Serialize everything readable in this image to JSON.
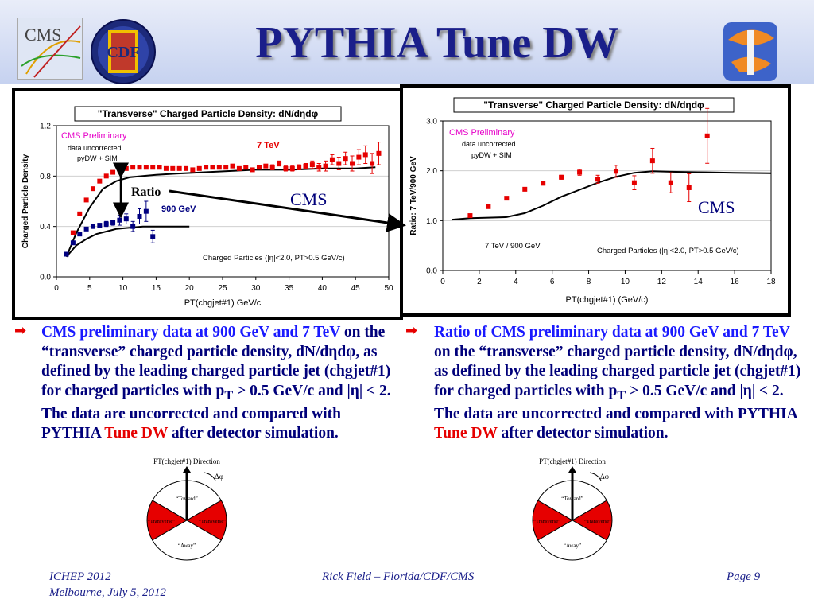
{
  "slide": {
    "title": "PYTHIA Tune DW",
    "logos": {
      "left_text": "CMS",
      "cdf_text": "CDF"
    }
  },
  "colors": {
    "title": "#1a1f8a",
    "red": "#e60000",
    "blue": "#000080",
    "magenta": "#e600c8",
    "text_blue": "#00007a",
    "bright_blue": "#1a1aff"
  },
  "annotations": {
    "ratio_label": "Ratio",
    "cms_left": "CMS",
    "cms_right": "CMS"
  },
  "chart_data": [
    {
      "type": "scatter",
      "title": "\"Transverse\" Charged Particle Density: dN/dηdφ",
      "xlabel": "PT(chgjet#1) GeV/c",
      "ylabel": "Charged Particle Density",
      "xlim": [
        0,
        50
      ],
      "ylim": [
        0,
        1.2
      ],
      "x_ticks": [
        0,
        5,
        10,
        15,
        20,
        25,
        30,
        35,
        40,
        45,
        50
      ],
      "x_tick_labels": [
        "0",
        "5",
        "10",
        "15",
        "20",
        "25",
        "30",
        "35",
        "40",
        "45",
        "50"
      ],
      "y_ticks": [
        0,
        0.4,
        0.8,
        1.2
      ],
      "y_tick_labels": [
        "0.0",
        "0.4",
        "0.8",
        "1.2"
      ],
      "annotations": {
        "prelim": "CMS Preliminary",
        "note1": "data uncorrected",
        "note2": "pyDW + SIM",
        "label_7tev": "7 TeV",
        "label_900": "900 GeV",
        "cuts": "Charged Particles (|η|<2.0, PT>0.5 GeV/c)"
      },
      "series": [
        {
          "name": "7 TeV",
          "color": "#e60000",
          "x": [
            1.5,
            2.5,
            3.5,
            4.5,
            5.5,
            6.5,
            7.5,
            8.5,
            9.5,
            10.5,
            11.5,
            12.5,
            13.5,
            14.5,
            15.5,
            16.5,
            17.5,
            18.5,
            19.5,
            20.5,
            21.5,
            22.5,
            23.5,
            24.5,
            25.5,
            26.5,
            27.5,
            28.5,
            29.5,
            30.5,
            31.5,
            32.5,
            33.5,
            34.5,
            35.5,
            36.5,
            37.5,
            38.5,
            39.5,
            40.5,
            41.5,
            42.5,
            43.5,
            44.5,
            45.5,
            46.5,
            47.5,
            48.5
          ],
          "y": [
            0.18,
            0.35,
            0.5,
            0.61,
            0.7,
            0.76,
            0.8,
            0.83,
            0.85,
            0.86,
            0.87,
            0.87,
            0.87,
            0.87,
            0.87,
            0.86,
            0.86,
            0.86,
            0.86,
            0.85,
            0.86,
            0.87,
            0.87,
            0.87,
            0.87,
            0.88,
            0.86,
            0.87,
            0.85,
            0.87,
            0.88,
            0.87,
            0.9,
            0.86,
            0.86,
            0.87,
            0.88,
            0.89,
            0.87,
            0.88,
            0.93,
            0.9,
            0.94,
            0.9,
            0.95,
            0.97,
            0.9,
            0.98
          ],
          "yerr": [
            0.01,
            0.01,
            0.01,
            0.01,
            0.01,
            0.01,
            0.01,
            0.01,
            0.01,
            0.01,
            0.01,
            0.01,
            0.01,
            0.01,
            0.01,
            0.01,
            0.01,
            0.01,
            0.01,
            0.01,
            0.01,
            0.01,
            0.01,
            0.01,
            0.01,
            0.01,
            0.01,
            0.01,
            0.01,
            0.01,
            0.01,
            0.02,
            0.02,
            0.02,
            0.02,
            0.02,
            0.02,
            0.03,
            0.03,
            0.04,
            0.04,
            0.05,
            0.05,
            0.06,
            0.06,
            0.07,
            0.08,
            0.09
          ]
        },
        {
          "name": "900 GeV",
          "color": "#000080",
          "x": [
            1.5,
            2.5,
            3.5,
            4.5,
            5.5,
            6.5,
            7.5,
            8.5,
            9.5,
            10.5,
            11.5,
            12.5,
            13.5,
            14.5
          ],
          "y": [
            0.18,
            0.27,
            0.34,
            0.38,
            0.4,
            0.41,
            0.42,
            0.43,
            0.45,
            0.46,
            0.4,
            0.48,
            0.52,
            0.32
          ],
          "yerr": [
            0.01,
            0.01,
            0.01,
            0.01,
            0.01,
            0.01,
            0.02,
            0.02,
            0.04,
            0.04,
            0.04,
            0.06,
            0.08,
            0.05
          ]
        }
      ],
      "mc_curves": [
        {
          "name": "pyDW 7 TeV",
          "x": [
            1.5,
            3,
            5,
            7,
            9,
            11,
            13,
            15,
            18,
            22,
            26,
            30,
            35,
            40,
            45,
            48
          ],
          "y": [
            0.16,
            0.35,
            0.55,
            0.7,
            0.76,
            0.79,
            0.8,
            0.81,
            0.82,
            0.83,
            0.84,
            0.85,
            0.85,
            0.86,
            0.86,
            0.87
          ]
        },
        {
          "name": "pyDW 900 GeV",
          "x": [
            1.5,
            3,
            4.5,
            6,
            7.5,
            9,
            11,
            13,
            15,
            17,
            20
          ],
          "y": [
            0.16,
            0.25,
            0.3,
            0.34,
            0.36,
            0.38,
            0.39,
            0.4,
            0.4,
            0.4,
            0.4
          ]
        }
      ]
    },
    {
      "type": "scatter",
      "title": "\"Transverse\" Charged Particle Density: dN/dηdφ",
      "xlabel": "PT(chgjet#1)  (GeV/c)",
      "ylabel": "Ratio: 7 TeV/900 GeV",
      "xlim": [
        0,
        18
      ],
      "ylim": [
        0,
        3.0
      ],
      "x_ticks": [
        0,
        2,
        4,
        6,
        8,
        10,
        12,
        14,
        16,
        18
      ],
      "x_tick_labels": [
        "0",
        "2",
        "4",
        "6",
        "8",
        "10",
        "12",
        "14",
        "16",
        "18"
      ],
      "y_ticks": [
        0,
        1,
        2,
        3
      ],
      "y_tick_labels": [
        "0.0",
        "1.0",
        "2.0",
        "3.0"
      ],
      "annotations": {
        "prelim": "CMS Preliminary",
        "note1": "data uncorrected",
        "note2": "pyDW + SIM",
        "ratio_label": "7 TeV / 900 GeV",
        "cuts": "Charged Particles (|η|<2.0, PT>0.5 GeV/c)"
      },
      "series": [
        {
          "name": "7 TeV / 900 GeV",
          "color": "#e60000",
          "x": [
            1.5,
            2.5,
            3.5,
            4.5,
            5.5,
            6.5,
            7.5,
            8.5,
            9.5,
            10.5,
            11.5,
            12.5,
            13.5,
            14.5
          ],
          "y": [
            1.1,
            1.28,
            1.45,
            1.63,
            1.75,
            1.87,
            1.97,
            1.83,
            1.99,
            1.76,
            2.2,
            1.76,
            1.66,
            2.7
          ],
          "yerr": [
            0.02,
            0.02,
            0.02,
            0.03,
            0.03,
            0.04,
            0.06,
            0.08,
            0.12,
            0.14,
            0.25,
            0.2,
            0.28,
            0.55
          ]
        }
      ],
      "mc_curves": [
        {
          "name": "pyDW ratio",
          "x": [
            0.5,
            1.5,
            2.5,
            3.5,
            4.5,
            5.5,
            6.5,
            7.5,
            8.5,
            9.5,
            10.5,
            11.5,
            12.5,
            14,
            16,
            18
          ],
          "y": [
            1.02,
            1.05,
            1.06,
            1.07,
            1.15,
            1.3,
            1.48,
            1.62,
            1.76,
            1.88,
            1.96,
            1.99,
            1.98,
            1.97,
            1.96,
            1.95
          ]
        }
      ]
    }
  ],
  "text_left": {
    "bullet": "➡",
    "p1": "CMS preliminary data at  900 GeV and 7 TeV",
    "p2": "on the “transverse” charged particle density, dN/dηdφ, as defined by the leading charged particle jet (chgjet#1) for charged particles with p",
    "sub": "T",
    "p3": " > 0.5 GeV/c and |η| < 2.  The data are uncorrected and compared with PYTHIA ",
    "red": "Tune DW",
    "p4": " after detector simulation."
  },
  "text_right": {
    "bullet": "➡",
    "p1": "Ratio of CMS preliminary data at  900 GeV and 7 TeV",
    "p2": " on the “transverse” charged particle density, dN/dηdφ, as defined by the leading charged particle jet (chgjet#1) for charged particles with p",
    "sub": "T",
    "p3": " > 0.5 GeV/c and |η| < 2.  The data are uncorrected and compared with PYTHIA ",
    "red": "Tune DW",
    "p4": " after detector simulation."
  },
  "diagram": {
    "direction": "PT(chgjet#1) Direction",
    "dphi": "Δφ",
    "toward": "“Toward”",
    "transverse_left": "“Transverse”",
    "transverse_right": "“Transverse”",
    "away": "“Away”"
  },
  "footer": {
    "conf": "ICHEP 2012",
    "place": "Melbourne, July 5, 2012",
    "author": "Rick Field – Florida/CDF/CMS",
    "page": "Page 9"
  }
}
